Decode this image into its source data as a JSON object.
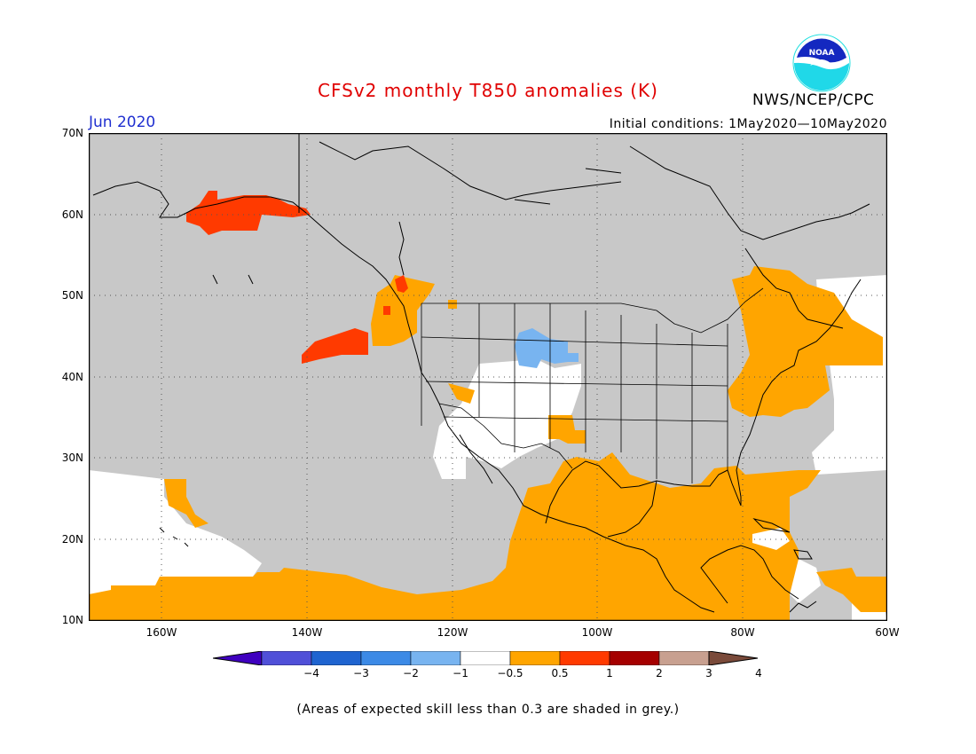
{
  "header": {
    "title": "CFSv2 monthly T850 anomalies (K)",
    "month": "Jun 2020",
    "initial_conditions": "Initial conditions: 1May2020—10May2020",
    "org": "NWS/NCEP/CPC",
    "logo_text": "NOAA"
  },
  "map": {
    "lon_range": [
      -170,
      -60
    ],
    "lat_range": [
      10,
      70
    ],
    "lat_labels": [
      "70N",
      "60N",
      "50N",
      "40N",
      "30N",
      "20N",
      "10N"
    ],
    "lon_labels": [
      "160W",
      "140W",
      "120W",
      "100W",
      "80W",
      "60W"
    ],
    "grid": "dotted",
    "background_fill": "grey (skill < 0.3)"
  },
  "colorbar": {
    "ticks": [
      "−4",
      "−3",
      "−2",
      "−1",
      "−0.5",
      "0.5",
      "1",
      "2",
      "3",
      "4"
    ],
    "colors": [
      "#3f00bf",
      "#5050d8",
      "#1f64d0",
      "#3c8ae6",
      "#78b4f0",
      "#ffffff",
      "#ffa500",
      "#ff3a00",
      "#a50000",
      "#c8a090",
      "#7a4a3a"
    ]
  },
  "footer": "(Areas of expected skill less than 0.3 are shaded in grey.)",
  "colors": {
    "title": "#e00000",
    "month": "#2030d0",
    "skill_grey": "#c8c8c8",
    "anomaly_orange": "#ffa500",
    "anomaly_red": "#ff3a00",
    "anomaly_blue": "#78b4f0"
  }
}
